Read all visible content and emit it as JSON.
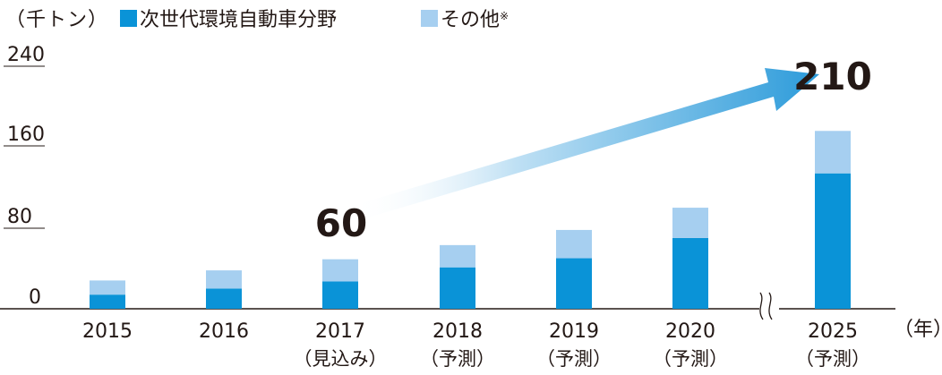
{
  "chart_data": {
    "type": "bar",
    "unit_label": "（千トン）",
    "x_unit_label": "（年）",
    "categories": [
      "2015",
      "2016",
      "2017",
      "2018",
      "2019",
      "2020",
      "2025"
    ],
    "category_notes": [
      "",
      "",
      "（見込み）",
      "（予測）",
      "（予測）",
      "（予測）",
      "（予測）"
    ],
    "stacked": true,
    "series": [
      {
        "name": "次世代環境自動車分野",
        "values": [
          14,
          20,
          27,
          41,
          50,
          70,
          134
        ],
        "color": "#0a93d7"
      },
      {
        "name": "その他",
        "name_suffix": "※",
        "values": [
          14,
          18,
          22,
          22,
          28,
          30,
          42
        ],
        "color": "#a6cff0"
      }
    ],
    "yticks": [
      "240",
      "160",
      "80",
      "0"
    ],
    "ylim": [
      0,
      240
    ],
    "annotations": [
      {
        "label": "60",
        "category": "2017"
      },
      {
        "label": "210",
        "category": "2025"
      }
    ],
    "axis_break_between": [
      "2020",
      "2025"
    ],
    "trend_arrow": true
  }
}
